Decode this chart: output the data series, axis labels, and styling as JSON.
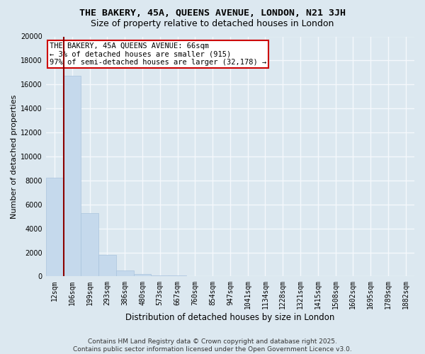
{
  "title_line1": "THE BAKERY, 45A, QUEENS AVENUE, LONDON, N21 3JH",
  "title_line2": "Size of property relative to detached houses in London",
  "xlabel": "Distribution of detached houses by size in London",
  "ylabel": "Number of detached properties",
  "annotation_line1": "THE BAKERY, 45A QUEENS AVENUE: 66sqm",
  "annotation_line2": "← 3% of detached houses are smaller (915)",
  "annotation_line3": "97% of semi-detached houses are larger (32,178) →",
  "categories": [
    "12sqm",
    "106sqm",
    "199sqm",
    "293sqm",
    "386sqm",
    "480sqm",
    "573sqm",
    "667sqm",
    "760sqm",
    "854sqm",
    "947sqm",
    "1041sqm",
    "1134sqm",
    "1228sqm",
    "1321sqm",
    "1415sqm",
    "1508sqm",
    "1602sqm",
    "1695sqm",
    "1789sqm",
    "1882sqm"
  ],
  "values": [
    8200,
    16700,
    5300,
    1800,
    500,
    200,
    100,
    60,
    30,
    10,
    0,
    0,
    0,
    0,
    0,
    0,
    0,
    0,
    0,
    0,
    0
  ],
  "bar_color": "#c5d9ec",
  "bar_edgecolor": "#aac4de",
  "redline_color": "#8b0000",
  "ylim": [
    0,
    20000
  ],
  "yticks": [
    0,
    2000,
    4000,
    6000,
    8000,
    10000,
    12000,
    14000,
    16000,
    18000,
    20000
  ],
  "bg_color": "#dce8f0",
  "plot_bg_color": "#dce8f0",
  "grid_color": "#f5f8fc",
  "annotation_box_color": "#ffffff",
  "annotation_box_edgecolor": "#cc0000",
  "footer_text": "Contains HM Land Registry data © Crown copyright and database right 2025.\nContains public sector information licensed under the Open Government Licence v3.0.",
  "title_fontsize": 9.5,
  "subtitle_fontsize": 9,
  "tick_fontsize": 7,
  "ylabel_fontsize": 8,
  "xlabel_fontsize": 8.5,
  "annotation_fontsize": 7.5,
  "footer_fontsize": 6.5
}
